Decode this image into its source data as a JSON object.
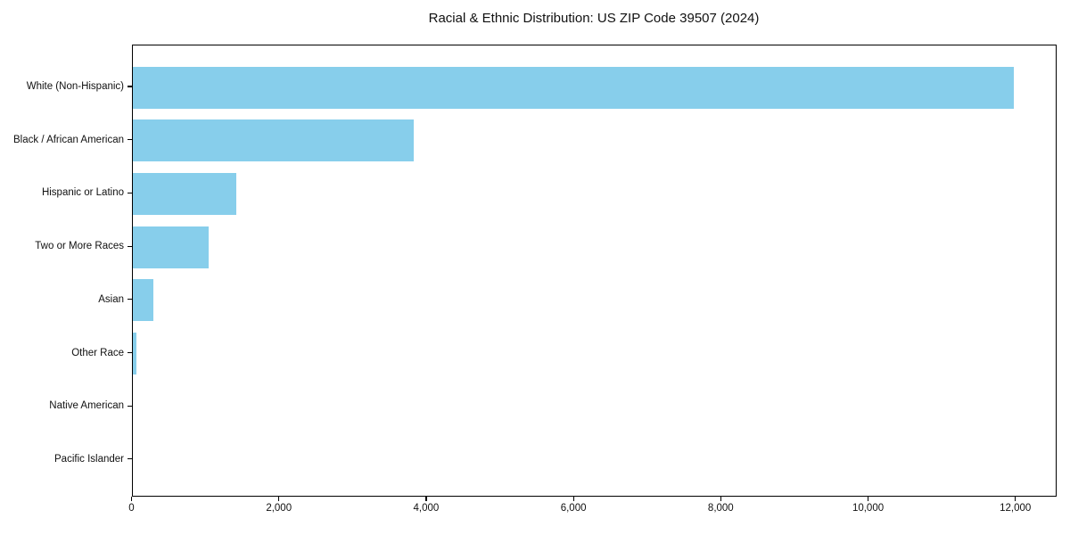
{
  "title": "Racial & Ethnic Distribution: US ZIP Code 39507 (2024)",
  "colors": {
    "bar": "#87CEEB",
    "axis": "#000000",
    "text": "#111111",
    "background": "#ffffff"
  },
  "chart_data": {
    "type": "bar",
    "orientation": "horizontal",
    "title": "Racial & Ethnic Distribution: US ZIP Code 39507 (2024)",
    "categories": [
      "White (Non-Hispanic)",
      "Black / African American",
      "Hispanic or Latino",
      "Two or More Races",
      "Asian",
      "Other Race",
      "Native American",
      "Pacific Islander"
    ],
    "values": [
      11970,
      3820,
      1415,
      1030,
      290,
      50,
      0,
      0
    ],
    "xlabel": "",
    "ylabel": "",
    "xlim": [
      0,
      12560
    ],
    "xticks": [
      0,
      2000,
      4000,
      6000,
      8000,
      10000,
      12000
    ],
    "xtick_labels": [
      "0",
      "2,000",
      "4,000",
      "6,000",
      "8,000",
      "10,000",
      "12,000"
    ],
    "grid": false,
    "legend": null,
    "bar_color": "#87CEEB"
  }
}
